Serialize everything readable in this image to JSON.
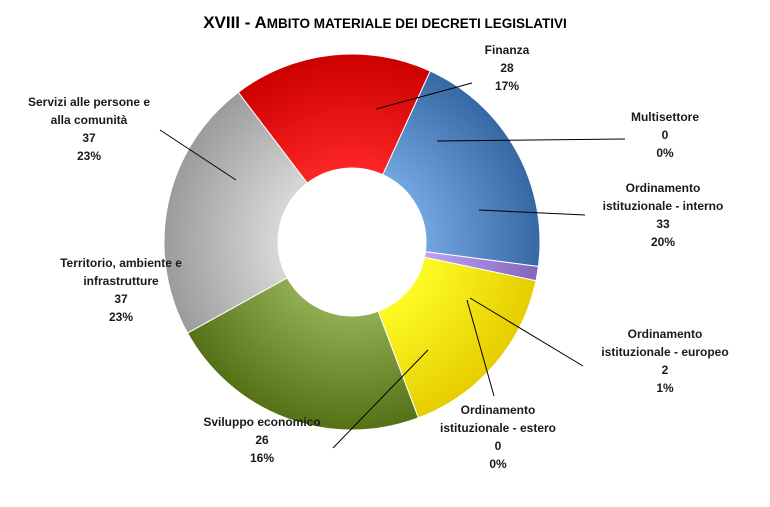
{
  "chart_data": {
    "type": "pie",
    "variant": "donut",
    "title_parts": [
      {
        "text": "XVIII - A",
        "small": false
      },
      {
        "text": "MBITO MATERIALE DEI DECRETI LEGISLATIVI",
        "small": true
      }
    ],
    "slices": [
      {
        "label_lines": [
          "Finanza"
        ],
        "value": 28,
        "percent": "17%",
        "color": "#e60000"
      },
      {
        "label_lines": [
          "Multisettore"
        ],
        "value": 0,
        "percent": "0%",
        "color": "#17375e"
      },
      {
        "label_lines": [
          "Ordinamento",
          "istituzionale - interno"
        ],
        "value": 33,
        "percent": "20%",
        "color": "#4f81bd"
      },
      {
        "label_lines": [
          "Ordinamento",
          "istituzionale - europeo"
        ],
        "value": 2,
        "percent": "1%",
        "color": "#9b7fd4"
      },
      {
        "label_lines": [
          "Ordinamento",
          "istituzionale - estero"
        ],
        "value": 0,
        "percent": "0%",
        "color": "#f0a000"
      },
      {
        "label_lines": [
          "Sviluppo economico"
        ],
        "value": 26,
        "percent": "16%",
        "color": "#ffe600"
      },
      {
        "label_lines": [
          "Territorio, ambiente e",
          "infrastrutture"
        ],
        "value": 37,
        "percent": "23%",
        "color": "#6e8a2e"
      },
      {
        "label_lines": [
          "Servizi alle persone e",
          "alla comunità"
        ],
        "value": 37,
        "percent": "23%",
        "color": "#b4b4b4"
      }
    ],
    "legend": "none"
  }
}
